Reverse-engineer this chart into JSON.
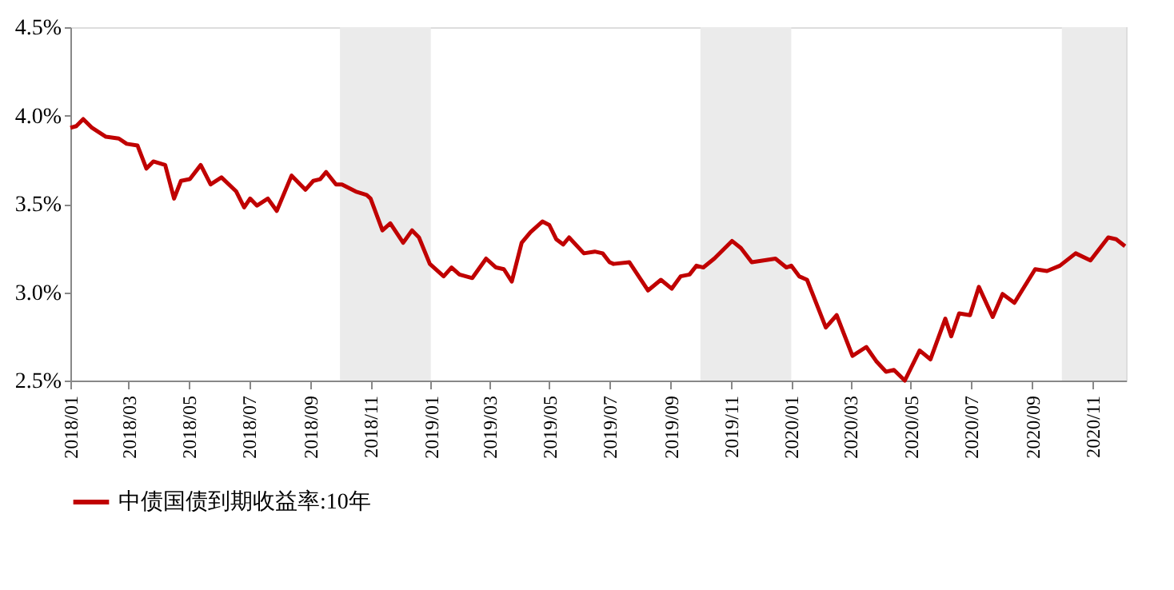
{
  "chart_data": {
    "type": "line",
    "xlim": [
      "2018-01-01",
      "2020-12-05"
    ],
    "xticks": [
      {
        "value": "2018-01",
        "label": "2018/01"
      },
      {
        "value": "2018-03",
        "label": "2018/03"
      },
      {
        "value": "2018-05",
        "label": "2018/05"
      },
      {
        "value": "2018-07",
        "label": "2018/07"
      },
      {
        "value": "2018-09",
        "label": "2018/09"
      },
      {
        "value": "2018-11",
        "label": "2018/11"
      },
      {
        "value": "2019-01",
        "label": "2019/01"
      },
      {
        "value": "2019-03",
        "label": "2019/03"
      },
      {
        "value": "2019-05",
        "label": "2019/05"
      },
      {
        "value": "2019-07",
        "label": "2019/07"
      },
      {
        "value": "2019-09",
        "label": "2019/09"
      },
      {
        "value": "2019-11",
        "label": "2019/11"
      },
      {
        "value": "2020-01",
        "label": "2020/01"
      },
      {
        "value": "2020-03",
        "label": "2020/03"
      },
      {
        "value": "2020-05",
        "label": "2020/05"
      },
      {
        "value": "2020-07",
        "label": "2020/07"
      },
      {
        "value": "2020-09",
        "label": "2020/09"
      },
      {
        "value": "2020-11",
        "label": "2020/11"
      }
    ],
    "ylim": [
      2.5,
      4.5
    ],
    "yticks": [
      {
        "value": 2.5,
        "label": "2.5%"
      },
      {
        "value": 3.0,
        "label": "3.0%"
      },
      {
        "value": 3.5,
        "label": "3.5%"
      },
      {
        "value": 4.0,
        "label": "4.0%"
      },
      {
        "value": 4.5,
        "label": "4.5%"
      }
    ],
    "grid": false,
    "legend": "bottom",
    "bands": [
      {
        "axis": "x",
        "from": "2018-10-01",
        "to": "2019-01-01",
        "color": "#ebebeb"
      },
      {
        "axis": "x",
        "from": "2019-10-01",
        "to": "2020-01-01",
        "color": "#ebebeb"
      },
      {
        "axis": "x",
        "from": "2020-10-01",
        "to": "2020-12-05",
        "color": "#ebebeb"
      }
    ],
    "series": [
      {
        "name": "中债国债到期收益率:10年",
        "color": "#c00000",
        "x": [
          "2018-01-01",
          "2018-01-07",
          "2018-01-14",
          "2018-01-23",
          "2018-02-06",
          "2018-02-19",
          "2018-02-27",
          "2018-03-10",
          "2018-03-19",
          "2018-03-26",
          "2018-04-07",
          "2018-04-16",
          "2018-04-23",
          "2018-05-02",
          "2018-05-13",
          "2018-05-23",
          "2018-06-03",
          "2018-06-18",
          "2018-06-26",
          "2018-07-02",
          "2018-07-09",
          "2018-07-20",
          "2018-07-29",
          "2018-08-13",
          "2018-08-27",
          "2018-09-04",
          "2018-09-11",
          "2018-09-17",
          "2018-09-27",
          "2018-10-03",
          "2018-10-17",
          "2018-10-28",
          "2018-11-01",
          "2018-11-13",
          "2018-11-21",
          "2018-12-04",
          "2018-12-13",
          "2018-12-20",
          "2018-12-31",
          "2019-01-14",
          "2019-01-22",
          "2019-01-30",
          "2019-02-12",
          "2019-02-26",
          "2019-03-08",
          "2019-03-16",
          "2019-03-24",
          "2019-04-03",
          "2019-04-12",
          "2019-04-24",
          "2019-05-01",
          "2019-05-08",
          "2019-05-15",
          "2019-05-21",
          "2019-06-05",
          "2019-06-16",
          "2019-06-24",
          "2019-07-01",
          "2019-07-05",
          "2019-07-21",
          "2019-08-09",
          "2019-08-22",
          "2019-09-02",
          "2019-09-11",
          "2019-09-20",
          "2019-09-27",
          "2019-10-04",
          "2019-10-15",
          "2019-11-02",
          "2019-11-11",
          "2019-11-22",
          "2019-12-16",
          "2019-12-27",
          "2020-01-01",
          "2020-01-09",
          "2020-01-17",
          "2020-02-05",
          "2020-02-16",
          "2020-03-03",
          "2020-03-17",
          "2020-03-27",
          "2020-04-06",
          "2020-04-14",
          "2020-04-25",
          "2020-05-10",
          "2020-05-21",
          "2020-06-05",
          "2020-06-11",
          "2020-06-19",
          "2020-06-30",
          "2020-07-09",
          "2020-07-23",
          "2020-08-02",
          "2020-08-14",
          "2020-09-04",
          "2020-09-16",
          "2020-09-29",
          "2020-10-15",
          "2020-10-30",
          "2020-11-17",
          "2020-11-25",
          "2020-12-04"
        ],
        "values": [
          3.93,
          3.94,
          3.98,
          3.93,
          3.88,
          3.87,
          3.84,
          3.83,
          3.7,
          3.74,
          3.72,
          3.53,
          3.63,
          3.64,
          3.72,
          3.61,
          3.65,
          3.57,
          3.48,
          3.53,
          3.49,
          3.53,
          3.46,
          3.66,
          3.58,
          3.63,
          3.64,
          3.68,
          3.61,
          3.61,
          3.57,
          3.55,
          3.53,
          3.35,
          3.39,
          3.28,
          3.35,
          3.31,
          3.16,
          3.09,
          3.14,
          3.1,
          3.08,
          3.19,
          3.14,
          3.13,
          3.06,
          3.28,
          3.34,
          3.4,
          3.38,
          3.3,
          3.27,
          3.31,
          3.22,
          3.23,
          3.22,
          3.17,
          3.16,
          3.17,
          3.01,
          3.07,
          3.02,
          3.09,
          3.1,
          3.15,
          3.14,
          3.19,
          3.29,
          3.25,
          3.17,
          3.19,
          3.14,
          3.15,
          3.09,
          3.07,
          2.8,
          2.87,
          2.64,
          2.69,
          2.61,
          2.55,
          2.56,
          2.5,
          2.67,
          2.62,
          2.85,
          2.75,
          2.88,
          2.87,
          3.03,
          2.86,
          2.99,
          2.94,
          3.13,
          3.12,
          3.15,
          3.22,
          3.18,
          3.31,
          3.3,
          3.26
        ]
      }
    ]
  }
}
